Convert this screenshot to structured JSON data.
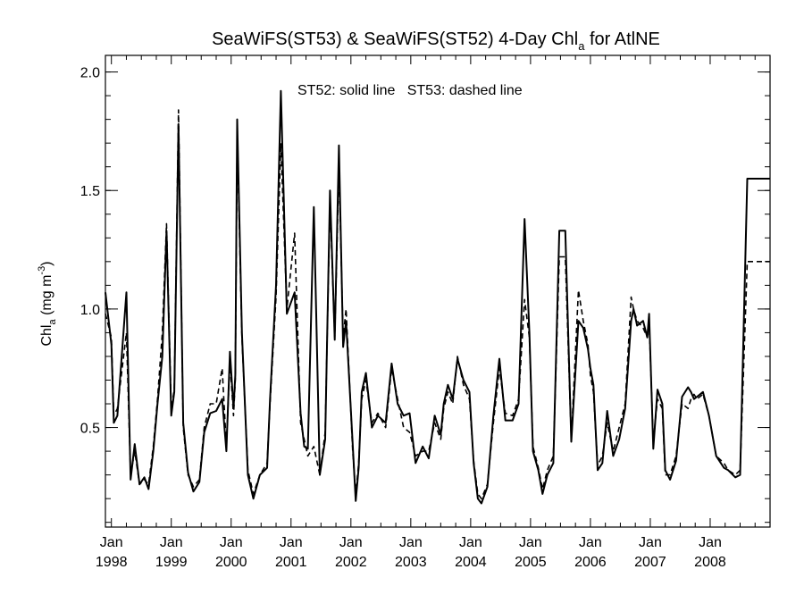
{
  "chart_data": {
    "type": "line",
    "title": "SeaWiFS(ST53) & SeaWiFS(ST52) 4-Day Chl",
    "title_subscript": "a",
    "title_suffix": " for AtlNE",
    "ylabel": "Chl",
    "ylabel_subscript": "a",
    "ylabel_units": " (mg m",
    "ylabel_units_superscript": "-3",
    "ylabel_units_close": ")",
    "annotation": "ST52: solid line   ST53: dashed line",
    "xlim": [
      1997.9,
      2009.0
    ],
    "ylim": [
      0.08,
      2.07
    ],
    "yticks": [
      0.5,
      1.0,
      1.5,
      2.0
    ],
    "ytick_labels": [
      "0.5",
      "1.0",
      "1.5",
      "2.0"
    ],
    "yminor_step": 0.1,
    "xticks": [
      1998,
      1999,
      2000,
      2001,
      2002,
      2003,
      2004,
      2005,
      2006,
      2007,
      2008
    ],
    "xtick_month": "Jan",
    "xtick_years": [
      "1998",
      "1999",
      "2000",
      "2001",
      "2002",
      "2003",
      "2004",
      "2005",
      "2006",
      "2007",
      "2008"
    ],
    "series": [
      {
        "name": "ST52",
        "style": "solid",
        "x": [
          1997.9,
          1998.0,
          1998.04,
          1998.1,
          1998.25,
          1998.32,
          1998.39,
          1998.47,
          1998.55,
          1998.62,
          1998.7,
          1998.77,
          1998.85,
          1998.92,
          1999.0,
          1999.05,
          1999.12,
          1999.2,
          1999.28,
          1999.37,
          1999.47,
          1999.55,
          1999.65,
          1999.75,
          1999.85,
          1999.92,
          1999.98,
          2000.04,
          2000.07,
          2000.1,
          2000.18,
          2000.28,
          2000.37,
          2000.48,
          2000.6,
          2000.65,
          2000.75,
          2000.83,
          2000.93,
          2001.06,
          2001.16,
          2001.22,
          2001.28,
          2001.38,
          2001.48,
          2001.57,
          2001.65,
          2001.73,
          2001.8,
          2001.87,
          2001.92,
          2002.03,
          2002.08,
          2002.13,
          2002.18,
          2002.25,
          2002.35,
          2002.45,
          2002.58,
          2002.68,
          2002.78,
          2002.88,
          2002.98,
          2003.08,
          2003.2,
          2003.3,
          2003.4,
          2003.5,
          2003.55,
          2003.62,
          2003.7,
          2003.78,
          2003.88,
          2003.98,
          2004.05,
          2004.12,
          2004.18,
          2004.28,
          2004.38,
          2004.48,
          2004.58,
          2004.7,
          2004.8,
          2004.9,
          2004.98,
          2005.04,
          2005.13,
          2005.2,
          2005.28,
          2005.38,
          2005.48,
          2005.58,
          2005.68,
          2005.8,
          2005.88,
          2005.96,
          2006.0,
          2006.05,
          2006.12,
          2006.2,
          2006.28,
          2006.38,
          2006.48,
          2006.58,
          2006.68,
          2006.72,
          2006.78,
          2006.88,
          2006.95,
          2006.98,
          2007.05,
          2007.12,
          2007.2,
          2007.25,
          2007.33,
          2007.43,
          2007.53,
          2007.63,
          2007.68,
          2007.73,
          2007.78,
          2007.88,
          2007.98,
          2008.1,
          2008.23,
          2008.3,
          2008.42,
          2008.5,
          2008.62,
          2008.72,
          2008.82,
          2008.9,
          2008.98,
          2009.0
        ],
        "values": [
          1.07,
          0.85,
          0.52,
          0.55,
          1.07,
          0.28,
          0.43,
          0.26,
          0.29,
          0.24,
          0.4,
          0.6,
          0.8,
          1.33,
          0.55,
          0.65,
          1.78,
          0.52,
          0.31,
          0.23,
          0.27,
          0.48,
          0.56,
          0.57,
          0.62,
          0.4,
          0.82,
          0.58,
          0.72,
          1.8,
          0.9,
          0.3,
          0.2,
          0.3,
          0.33,
          0.62,
          1.1,
          1.92,
          0.98,
          1.07,
          0.56,
          0.42,
          0.41,
          1.43,
          0.3,
          0.45,
          1.5,
          0.87,
          1.69,
          0.84,
          0.95,
          0.43,
          0.19,
          0.33,
          0.65,
          0.73,
          0.5,
          0.55,
          0.52,
          0.77,
          0.6,
          0.55,
          0.56,
          0.35,
          0.42,
          0.37,
          0.55,
          0.47,
          0.6,
          0.68,
          0.62,
          0.79,
          0.7,
          0.65,
          0.35,
          0.2,
          0.18,
          0.25,
          0.55,
          0.79,
          0.53,
          0.53,
          0.6,
          1.38,
          0.9,
          0.4,
          0.32,
          0.22,
          0.3,
          0.35,
          1.33,
          1.33,
          0.44,
          0.95,
          0.92,
          0.83,
          0.75,
          0.68,
          0.32,
          0.35,
          0.57,
          0.38,
          0.45,
          0.58,
          0.95,
          1.0,
          0.93,
          0.95,
          0.88,
          0.98,
          0.41,
          0.66,
          0.6,
          0.32,
          0.28,
          0.36,
          0.63,
          0.67,
          0.65,
          0.62,
          0.63,
          0.65,
          0.55,
          0.38,
          0.33,
          0.32,
          0.29,
          0.3,
          1.55,
          1.55,
          1.55,
          1.55,
          1.55,
          1.55
        ],
        "values_trim_note": ""
      },
      {
        "name": "ST53",
        "style": "dashed",
        "x": [
          1997.9,
          1998.0,
          1998.04,
          1998.1,
          1998.25,
          1998.32,
          1998.39,
          1998.47,
          1998.55,
          1998.62,
          1998.7,
          1998.77,
          1998.85,
          1998.92,
          1999.0,
          1999.05,
          1999.12,
          1999.2,
          1999.28,
          1999.37,
          1999.47,
          1999.55,
          1999.65,
          1999.75,
          1999.85,
          1999.92,
          1999.98,
          2000.04,
          2000.07,
          2000.1,
          2000.18,
          2000.28,
          2000.37,
          2000.48,
          2000.6,
          2000.65,
          2000.75,
          2000.83,
          2000.93,
          2001.06,
          2001.16,
          2001.22,
          2001.28,
          2001.38,
          2001.48,
          2001.57,
          2001.65,
          2001.73,
          2001.8,
          2001.87,
          2001.92,
          2002.03,
          2002.08,
          2002.13,
          2002.18,
          2002.25,
          2002.35,
          2002.45,
          2002.58,
          2002.68,
          2002.78,
          2002.88,
          2002.98,
          2003.08,
          2003.2,
          2003.3,
          2003.4,
          2003.5,
          2003.55,
          2003.62,
          2003.7,
          2003.78,
          2003.88,
          2003.98,
          2004.05,
          2004.12,
          2004.18,
          2004.28,
          2004.38,
          2004.48,
          2004.58,
          2004.7,
          2004.8,
          2004.9,
          2004.98,
          2005.04,
          2005.13,
          2005.2,
          2005.28,
          2005.38,
          2005.48,
          2005.58,
          2005.68,
          2005.8,
          2005.88,
          2005.96,
          2006.0,
          2006.05,
          2006.12,
          2006.2,
          2006.28,
          2006.38,
          2006.48,
          2006.58,
          2006.68,
          2006.72,
          2006.78,
          2006.88,
          2006.95,
          2006.98,
          2007.05,
          2007.12,
          2007.2,
          2007.25,
          2007.33,
          2007.43,
          2007.53,
          2007.63,
          2007.68,
          2007.73,
          2007.78,
          2007.88,
          2007.98,
          2008.1,
          2008.23,
          2008.3,
          2008.42,
          2008.5,
          2008.62,
          2008.72,
          2008.82,
          2008.9,
          2008.98,
          2009.0
        ],
        "values": [
          0.98,
          0.88,
          0.55,
          0.58,
          0.9,
          0.3,
          0.4,
          0.26,
          0.28,
          0.26,
          0.42,
          0.62,
          0.9,
          1.36,
          0.58,
          0.66,
          1.84,
          0.5,
          0.3,
          0.25,
          0.28,
          0.5,
          0.6,
          0.6,
          0.75,
          0.42,
          0.78,
          0.55,
          0.7,
          1.74,
          0.88,
          0.32,
          0.22,
          0.3,
          0.35,
          0.6,
          1.05,
          1.7,
          1.0,
          1.32,
          0.52,
          0.45,
          0.38,
          0.42,
          0.3,
          0.48,
          1.45,
          0.88,
          1.6,
          0.88,
          1.0,
          0.4,
          0.22,
          0.35,
          0.62,
          0.7,
          0.52,
          0.56,
          0.5,
          0.75,
          0.62,
          0.5,
          0.48,
          0.38,
          0.4,
          0.4,
          0.52,
          0.45,
          0.58,
          0.65,
          0.6,
          0.8,
          0.68,
          0.62,
          0.36,
          0.22,
          0.2,
          0.26,
          0.52,
          0.75,
          0.56,
          0.55,
          0.62,
          1.04,
          0.88,
          0.42,
          0.33,
          0.24,
          0.32,
          0.38,
          1.22,
          1.22,
          0.45,
          1.08,
          0.95,
          0.85,
          0.72,
          0.65,
          0.34,
          0.38,
          0.52,
          0.4,
          0.5,
          0.6,
          1.05,
          1.0,
          0.95,
          0.92,
          0.88,
          0.95,
          0.44,
          0.62,
          0.58,
          0.3,
          0.3,
          0.38,
          0.6,
          0.58,
          0.62,
          0.64,
          0.62,
          0.64,
          0.55,
          0.38,
          0.35,
          0.32,
          0.3,
          0.32,
          1.2,
          1.2,
          1.2,
          1.2,
          1.2,
          1.2
        ]
      }
    ]
  }
}
